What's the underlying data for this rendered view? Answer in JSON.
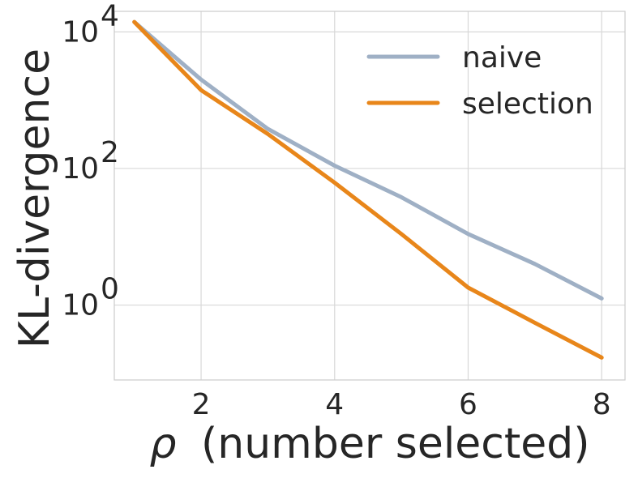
{
  "chart_data": {
    "type": "line",
    "xlabel": "ρ (number selected)",
    "xlabel_symbol": "ρ",
    "xlabel_rest": "(number selected)",
    "ylabel": "KL-divergence",
    "yscale": "log",
    "xlim": [
      0.7,
      8.35
    ],
    "ylim": [
      0.08,
      20000
    ],
    "xticks": [
      2,
      4,
      6,
      8
    ],
    "xtick_labels": [
      "2",
      "4",
      "6",
      "8"
    ],
    "yticks": [
      1,
      100,
      10000
    ],
    "ytick_labels": [
      {
        "base": "10",
        "exp": "0"
      },
      {
        "base": "10",
        "exp": "2"
      },
      {
        "base": "10",
        "exp": "4"
      }
    ],
    "grid": true,
    "legend_position": "top-right",
    "x": [
      1,
      2,
      3,
      4,
      5,
      6,
      7,
      8
    ],
    "series": [
      {
        "name": "naive",
        "color": "#9fb0c5",
        "values": [
          14000,
          2000,
          380,
          110,
          38,
          11,
          4,
          1.25
        ]
      },
      {
        "name": "selection",
        "color": "#e8861a",
        "values": [
          14000,
          1400,
          320,
          62,
          11,
          1.8,
          0.55,
          0.17
        ]
      }
    ]
  }
}
